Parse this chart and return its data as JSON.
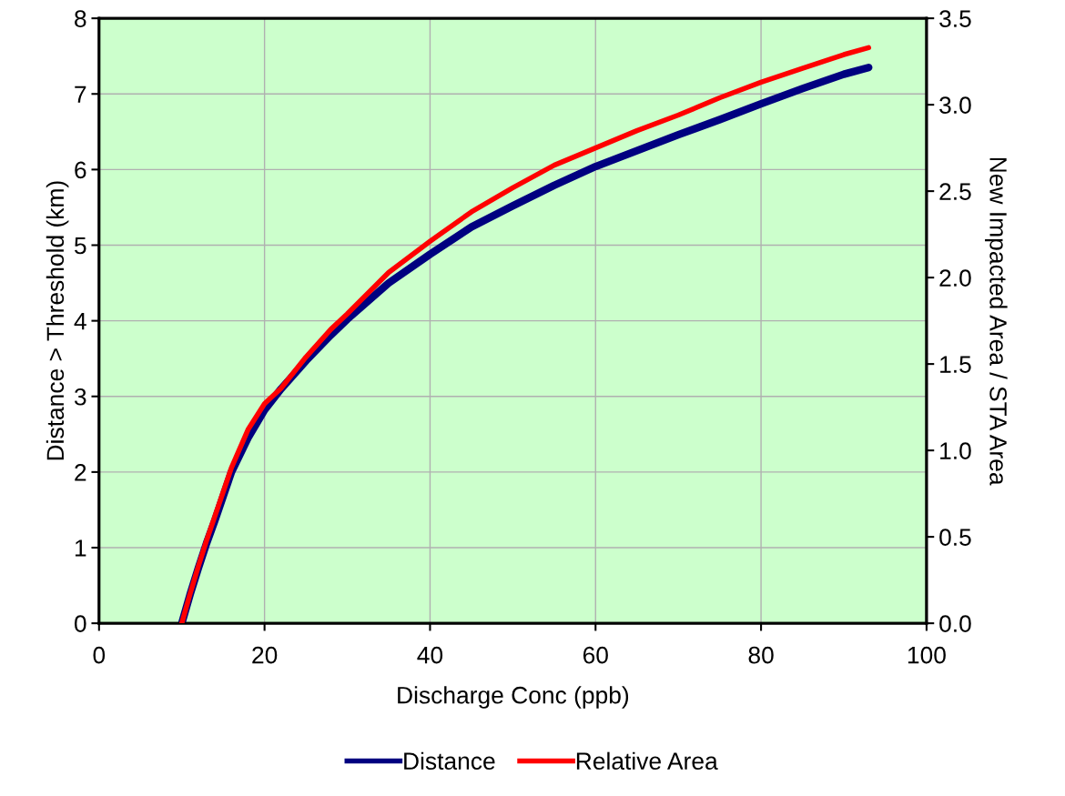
{
  "chart_data": {
    "type": "line",
    "xlabel": "Discharge Conc (ppb)",
    "ylabel": "Distance > Threshold (km)",
    "y2label": "New Impacted Area / STA Area",
    "x": [
      10,
      11,
      12,
      13,
      14,
      16,
      18,
      20,
      22,
      25,
      28,
      30,
      35,
      40,
      45,
      50,
      55,
      60,
      65,
      70,
      75,
      80,
      85,
      90,
      93
    ],
    "series": [
      {
        "name": "Distance",
        "color": "#000080",
        "values": [
          0,
          0.38,
          0.73,
          1.06,
          1.36,
          2.0,
          2.45,
          2.82,
          3.1,
          3.47,
          3.81,
          4.02,
          4.5,
          4.88,
          5.24,
          5.52,
          5.79,
          6.04,
          6.25,
          6.46,
          6.66,
          6.87,
          7.07,
          7.26,
          7.35
        ]
      },
      {
        "name": "Relative Area",
        "color": "#ff0000",
        "axis": "y2",
        "values": [
          0,
          0.17,
          0.33,
          0.48,
          0.62,
          0.9,
          1.12,
          1.27,
          1.36,
          1.54,
          1.7,
          1.79,
          2.03,
          2.21,
          2.38,
          2.52,
          2.65,
          2.75,
          2.85,
          2.94,
          3.04,
          3.13,
          3.21,
          3.29,
          3.33
        ]
      }
    ],
    "xlim": [
      0,
      100
    ],
    "xticks": [
      0,
      20,
      40,
      60,
      80,
      100
    ],
    "ylim": [
      0,
      8
    ],
    "yticks": [
      0,
      1,
      2,
      3,
      4,
      5,
      6,
      7,
      8
    ],
    "y2lim": [
      0,
      3.5
    ],
    "y2ticks": [
      {
        "value": 0,
        "label": "0.0"
      },
      {
        "value": 0.5,
        "label": "0.5"
      },
      {
        "value": 1,
        "label": "1.0"
      },
      {
        "value": 1.5,
        "label": "1.5"
      },
      {
        "value": 2,
        "label": "2.0"
      },
      {
        "value": 2.5,
        "label": "2.5"
      },
      {
        "value": 3,
        "label": "3.0"
      },
      {
        "value": 3.5,
        "label": "3.5"
      }
    ],
    "grid": true,
    "legend": "bottom",
    "marker": "none",
    "line_style": "solid"
  }
}
